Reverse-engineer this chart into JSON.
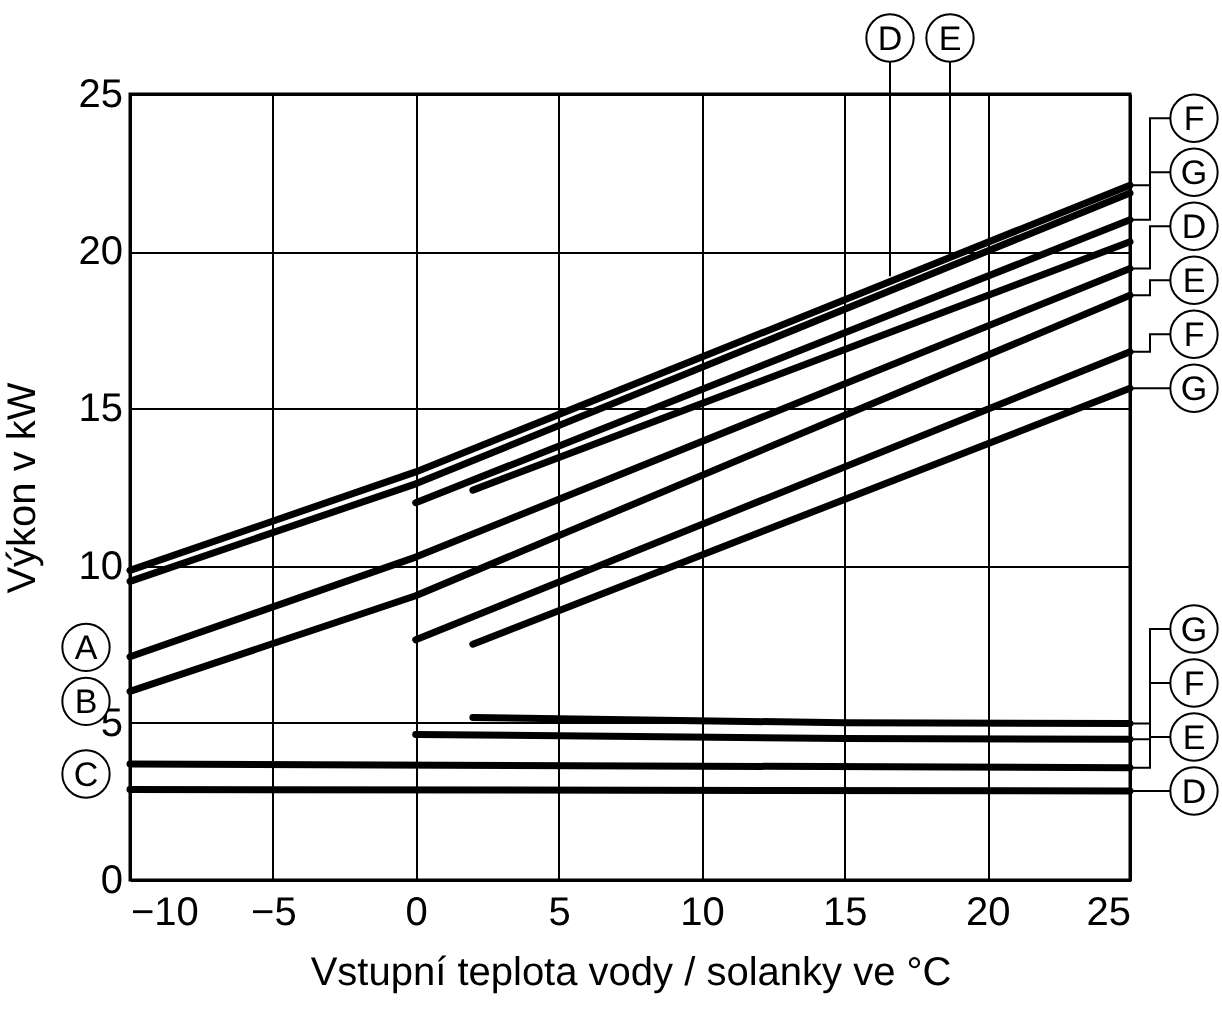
{
  "chart_data": {
    "type": "line",
    "xlabel": "Vstupní teplota vody / solanky ve °C",
    "ylabel": "Výkon v kW",
    "xlim": [
      -10,
      25
    ],
    "xticks": [
      -10,
      -5,
      0,
      5,
      10,
      15,
      20,
      25
    ],
    "ylim": [
      0,
      25
    ],
    "yticks": [
      0,
      5,
      10,
      15,
      20,
      25
    ],
    "grid": true,
    "line_style": "solid",
    "marker": "none",
    "series": [
      {
        "color": "#000000",
        "x": [
          -10,
          0,
          25
        ],
        "values": [
          9.85,
          12.98,
          22.1
        ]
      },
      {
        "color": "#000000",
        "x": [
          -10,
          0,
          25
        ],
        "values": [
          9.5,
          12.6,
          21.85
        ]
      },
      {
        "color": "#000000",
        "x": [
          0,
          25
        ],
        "values": [
          12.0,
          21.0
        ]
      },
      {
        "color": "#000000",
        "x": [
          2,
          25
        ],
        "values": [
          12.4,
          20.3
        ]
      },
      {
        "color": "#000000",
        "x": [
          -10,
          0,
          25
        ],
        "values": [
          7.1,
          10.27,
          19.45
        ]
      },
      {
        "color": "#000000",
        "x": [
          -10,
          0,
          25
        ],
        "values": [
          6.0,
          9.04,
          18.6
        ]
      },
      {
        "color": "#000000",
        "x": [
          0,
          25
        ],
        "values": [
          7.64,
          16.8
        ]
      },
      {
        "color": "#000000",
        "x": [
          2,
          25
        ],
        "values": [
          7.5,
          15.64
        ]
      },
      {
        "color": "#000000",
        "x": [
          2,
          15,
          25
        ],
        "values": [
          5.17,
          5.0,
          4.98
        ]
      },
      {
        "color": "#000000",
        "x": [
          0,
          15,
          25
        ],
        "values": [
          4.63,
          4.5,
          4.48
        ]
      },
      {
        "color": "#000000",
        "x": [
          -10,
          25
        ],
        "values": [
          3.69,
          3.57
        ]
      },
      {
        "color": "#000000",
        "x": [
          -10,
          25
        ],
        "values": [
          2.88,
          2.83
        ]
      }
    ],
    "annotations": [
      {
        "text": "D",
        "x": 16.6,
        "y": 19.2
      },
      {
        "text": "E",
        "x": 18.7,
        "y": 19.8
      },
      {
        "text": "F",
        "x": 25,
        "y": 22.1
      },
      {
        "text": "G",
        "x": 25,
        "y": 21.0
      },
      {
        "text": "D",
        "x": 25,
        "y": 19.45
      },
      {
        "text": "E",
        "x": 25,
        "y": 18.6
      },
      {
        "text": "F",
        "x": 25,
        "y": 16.8
      },
      {
        "text": "G",
        "x": 25,
        "y": 15.64
      },
      {
        "text": "G",
        "x": 25,
        "y": 4.98
      },
      {
        "text": "F",
        "x": 25,
        "y": 4.48
      },
      {
        "text": "E",
        "x": 25,
        "y": 3.57
      },
      {
        "text": "D",
        "x": 25,
        "y": 2.83
      },
      {
        "text": "A",
        "x": -10,
        "y": 7.1
      },
      {
        "text": "B",
        "x": -10,
        "y": 6.0
      },
      {
        "text": "C",
        "x": -10,
        "y": 3.69
      }
    ]
  }
}
